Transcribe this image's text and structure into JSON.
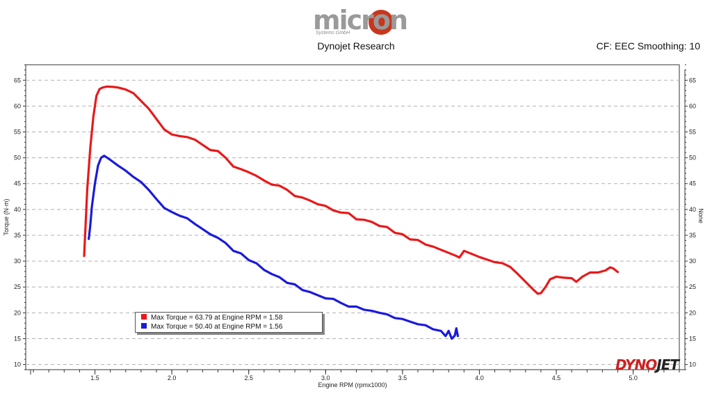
{
  "header": {
    "logo_text": "micron",
    "logo_subtext": "Systems GmbH",
    "subtitle": "Dynojet Research",
    "smoothing": "CF: EEC Smoothing: 10"
  },
  "colors": {
    "series_red": "#e8191a",
    "series_blue": "#1a1adc",
    "grid": "#b0b0b0",
    "logo_accent": "#c8371d"
  },
  "watermark": {
    "part1": "DYNO",
    "part2": "JET"
  },
  "legend": {
    "entries": [
      {
        "text": "Max Torque = 63.79 at Engine RPM = 1.58",
        "color": "#e8191a"
      },
      {
        "text": "Max Torque = 50.40 at Engine RPM = 1.56",
        "color": "#1a1adc"
      }
    ]
  },
  "chart_data": {
    "type": "line",
    "title": "Dynojet Research",
    "xlabel": "Engine RPM (rpmx1000)",
    "ylabel": "Torque (N·m)",
    "ylabel_right": "None",
    "xlim": [
      1.05,
      5.3
    ],
    "ylim": [
      9,
      68
    ],
    "x_ticks": [
      1.5,
      2.0,
      2.5,
      3.0,
      3.5,
      4.0,
      4.5,
      5.0
    ],
    "x_tick_labels": [
      "1.5",
      "2.0",
      "2.5",
      "3.0",
      "3.5",
      "4.0",
      "4.5",
      "5.0"
    ],
    "y_ticks": [
      10,
      15,
      20,
      25,
      30,
      35,
      40,
      45,
      50,
      55,
      60,
      65
    ],
    "y_tick_labels": [
      "10",
      "15",
      "20",
      "25",
      "30",
      "35",
      "40",
      "45",
      "50",
      "55",
      "60",
      "65"
    ],
    "grid": true,
    "series": [
      {
        "name": "Max Torque = 63.79 at Engine RPM = 1.58",
        "color": "#e8191a",
        "points": [
          [
            1.43,
            31
          ],
          [
            1.45,
            44
          ],
          [
            1.47,
            52
          ],
          [
            1.49,
            58
          ],
          [
            1.51,
            62
          ],
          [
            1.53,
            63.3
          ],
          [
            1.55,
            63.6
          ],
          [
            1.58,
            63.79
          ],
          [
            1.62,
            63.7
          ],
          [
            1.65,
            63.6
          ],
          [
            1.7,
            63.2
          ],
          [
            1.75,
            62.5
          ],
          [
            1.8,
            61
          ],
          [
            1.85,
            59.5
          ],
          [
            1.9,
            57.5
          ],
          [
            1.95,
            55.5
          ],
          [
            2.0,
            54.5
          ],
          [
            2.05,
            54.2
          ],
          [
            2.1,
            54
          ],
          [
            2.15,
            53.5
          ],
          [
            2.2,
            52.5
          ],
          [
            2.25,
            51.5
          ],
          [
            2.3,
            51.3
          ],
          [
            2.35,
            50
          ],
          [
            2.4,
            48.3
          ],
          [
            2.45,
            47.8
          ],
          [
            2.5,
            47.2
          ],
          [
            2.55,
            46.5
          ],
          [
            2.6,
            45.6
          ],
          [
            2.65,
            44.8
          ],
          [
            2.7,
            44.6
          ],
          [
            2.75,
            43.8
          ],
          [
            2.8,
            42.6
          ],
          [
            2.85,
            42.3
          ],
          [
            2.9,
            41.7
          ],
          [
            2.95,
            41
          ],
          [
            3.0,
            40.7
          ],
          [
            3.05,
            39.8
          ],
          [
            3.1,
            39.4
          ],
          [
            3.15,
            39.3
          ],
          [
            3.2,
            38.1
          ],
          [
            3.25,
            38
          ],
          [
            3.3,
            37.6
          ],
          [
            3.35,
            36.8
          ],
          [
            3.4,
            36.6
          ],
          [
            3.45,
            35.5
          ],
          [
            3.5,
            35.2
          ],
          [
            3.55,
            34.2
          ],
          [
            3.6,
            34.1
          ],
          [
            3.65,
            33.2
          ],
          [
            3.7,
            32.8
          ],
          [
            3.75,
            32.2
          ],
          [
            3.8,
            31.6
          ],
          [
            3.85,
            31
          ],
          [
            3.87,
            30.7
          ],
          [
            3.9,
            32
          ],
          [
            3.95,
            31.4
          ],
          [
            4.0,
            30.8
          ],
          [
            4.05,
            30.3
          ],
          [
            4.1,
            29.8
          ],
          [
            4.15,
            29.6
          ],
          [
            4.2,
            28.9
          ],
          [
            4.25,
            27.5
          ],
          [
            4.3,
            26
          ],
          [
            4.35,
            24.5
          ],
          [
            4.38,
            23.7
          ],
          [
            4.4,
            23.8
          ],
          [
            4.43,
            25
          ],
          [
            4.46,
            26.5
          ],
          [
            4.5,
            27
          ],
          [
            4.55,
            26.8
          ],
          [
            4.6,
            26.7
          ],
          [
            4.63,
            26
          ],
          [
            4.67,
            27
          ],
          [
            4.72,
            27.8
          ],
          [
            4.77,
            27.8
          ],
          [
            4.82,
            28.2
          ],
          [
            4.85,
            28.8
          ],
          [
            4.87,
            28.6
          ],
          [
            4.9,
            27.9
          ]
        ]
      },
      {
        "name": "Max Torque = 50.40 at Engine RPM = 1.56",
        "color": "#1a1adc",
        "points": [
          [
            1.46,
            34.3
          ],
          [
            1.47,
            37
          ],
          [
            1.48,
            40.5
          ],
          [
            1.5,
            45
          ],
          [
            1.52,
            48.5
          ],
          [
            1.54,
            50
          ],
          [
            1.56,
            50.4
          ],
          [
            1.6,
            49.6
          ],
          [
            1.65,
            48.5
          ],
          [
            1.7,
            47.5
          ],
          [
            1.75,
            46.3
          ],
          [
            1.8,
            45.3
          ],
          [
            1.85,
            43.8
          ],
          [
            1.9,
            42
          ],
          [
            1.95,
            40.3
          ],
          [
            2.0,
            39.5
          ],
          [
            2.05,
            38.8
          ],
          [
            2.1,
            38.3
          ],
          [
            2.15,
            37.2
          ],
          [
            2.2,
            36.2
          ],
          [
            2.25,
            35.2
          ],
          [
            2.3,
            34.5
          ],
          [
            2.35,
            33.5
          ],
          [
            2.4,
            32
          ],
          [
            2.45,
            31.5
          ],
          [
            2.5,
            30.2
          ],
          [
            2.55,
            29.6
          ],
          [
            2.6,
            28.3
          ],
          [
            2.65,
            27.5
          ],
          [
            2.7,
            26.9
          ],
          [
            2.75,
            25.8
          ],
          [
            2.8,
            25.5
          ],
          [
            2.85,
            24.4
          ],
          [
            2.9,
            24
          ],
          [
            2.95,
            23.4
          ],
          [
            3.0,
            22.8
          ],
          [
            3.05,
            22.7
          ],
          [
            3.1,
            21.9
          ],
          [
            3.15,
            21.2
          ],
          [
            3.2,
            21.2
          ],
          [
            3.25,
            20.6
          ],
          [
            3.3,
            20.4
          ],
          [
            3.35,
            20
          ],
          [
            3.4,
            19.7
          ],
          [
            3.45,
            19
          ],
          [
            3.5,
            18.8
          ],
          [
            3.55,
            18.3
          ],
          [
            3.6,
            17.8
          ],
          [
            3.65,
            17.6
          ],
          [
            3.7,
            16.8
          ],
          [
            3.75,
            16.5
          ],
          [
            3.78,
            15.5
          ],
          [
            3.8,
            16.5
          ],
          [
            3.82,
            15
          ],
          [
            3.84,
            15.6
          ],
          [
            3.85,
            17
          ],
          [
            3.86,
            15.5
          ]
        ]
      }
    ]
  }
}
